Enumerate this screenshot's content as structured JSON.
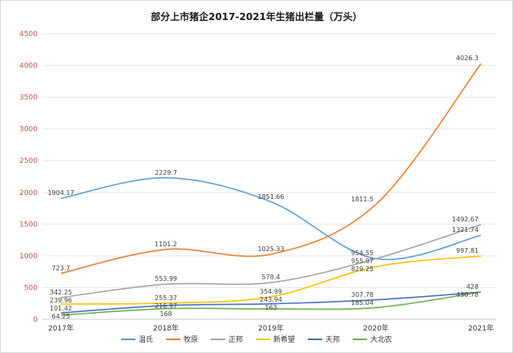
{
  "chart_data": {
    "type": "line",
    "title": "部分上市猪企2017-2021年生猪出栏量（万头）",
    "xlabel": "",
    "ylabel": "",
    "x": [
      "2017年",
      "2018年",
      "2019年",
      "2020年",
      "2021年"
    ],
    "series": [
      {
        "name": "温氏",
        "color": "#5B9BD5",
        "values": [
          1904.17,
          2229.7,
          1851.66,
          954.55,
          1321.74
        ]
      },
      {
        "name": "牧原",
        "color": "#ED7D31",
        "values": [
          723.7,
          1101.2,
          1025.33,
          1811.5,
          4026.3
        ]
      },
      {
        "name": "正邦",
        "color": "#A5A5A5",
        "values": [
          342.25,
          553.99,
          578.4,
          955.97,
          1492.67
        ]
      },
      {
        "name": "新希望",
        "color": "#FFC000",
        "values": [
          239.96,
          255.37,
          354.99,
          829.25,
          997.81
        ]
      },
      {
        "name": "天邦",
        "color": "#4472C4",
        "values": [
          101.42,
          216.97,
          243.94,
          307.78,
          428
        ]
      },
      {
        "name": "大北农",
        "color": "#70AD47",
        "values": [
          64.25,
          168,
          163,
          185.04,
          430.78
        ]
      }
    ],
    "ylim": [
      0,
      4500
    ],
    "ytick_step": 500,
    "grid": true,
    "smooth": true,
    "legend_position": "bottom",
    "colors": {
      "grid": "#e6e6e6",
      "axis": "#c9c9c9",
      "ytick": "#c0504d",
      "xtick": "#333333",
      "label": "#404040",
      "title": "#1a1a1a"
    }
  }
}
